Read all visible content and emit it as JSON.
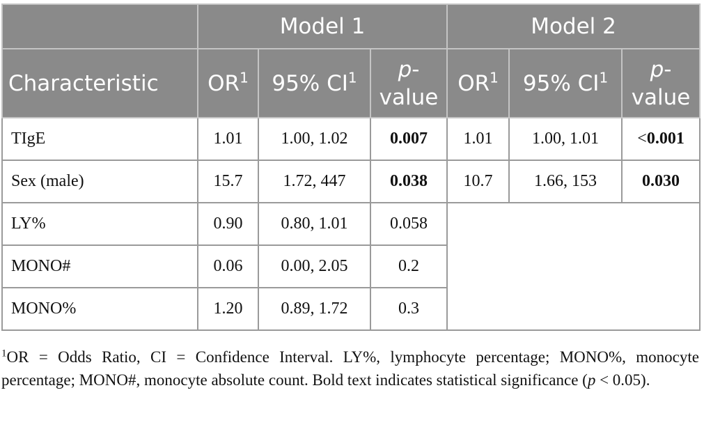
{
  "table": {
    "group_headers": [
      "Model 1",
      "Model 2"
    ],
    "columns": [
      {
        "text": "Characteristic"
      },
      {
        "text": "OR",
        "sup": "1"
      },
      {
        "text": "95% CI",
        "sup": "1"
      },
      {
        "italic": "p",
        "text": "-value"
      },
      {
        "text": "OR",
        "sup": "1"
      },
      {
        "text": "95% CI",
        "sup": "1"
      },
      {
        "italic": "p",
        "text": "-value"
      }
    ],
    "rows": [
      [
        {
          "text": "TIgE"
        },
        {
          "text": "1.01"
        },
        {
          "text": "1.00, 1.02"
        },
        {
          "text": "0.007",
          "bold": true
        },
        {
          "text": "1.01"
        },
        {
          "text": "1.00, 1.01"
        },
        {
          "prefix": "<",
          "text": "0.001",
          "bold": true
        }
      ],
      [
        {
          "text": "Sex (male)"
        },
        {
          "text": "15.7"
        },
        {
          "text": "1.72, 447"
        },
        {
          "text": "0.038",
          "bold": true
        },
        {
          "text": "10.7"
        },
        {
          "text": "1.66, 153"
        },
        {
          "text": "0.030",
          "bold": true
        }
      ],
      [
        {
          "text": "LY%"
        },
        {
          "text": "0.90"
        },
        {
          "text": "0.80, 1.01"
        },
        {
          "text": "0.058"
        }
      ],
      [
        {
          "text": "MONO#"
        },
        {
          "text": "0.06"
        },
        {
          "text": "0.00, 2.05"
        },
        {
          "text": "0.2"
        }
      ],
      [
        {
          "text": "MONO%"
        },
        {
          "text": "1.20"
        },
        {
          "text": "0.89, 1.72"
        },
        {
          "text": "0.3"
        }
      ]
    ]
  },
  "footnote": {
    "marker": "1",
    "text": "OR = Odds Ratio, CI = Confidence Interval. LY%, lymphocyte percentage; MONO%, monocyte percentage; MONO#, monocyte absolute count. Bold text indicates statistical significance (",
    "italic": "p",
    "end": " < 0.05)."
  }
}
